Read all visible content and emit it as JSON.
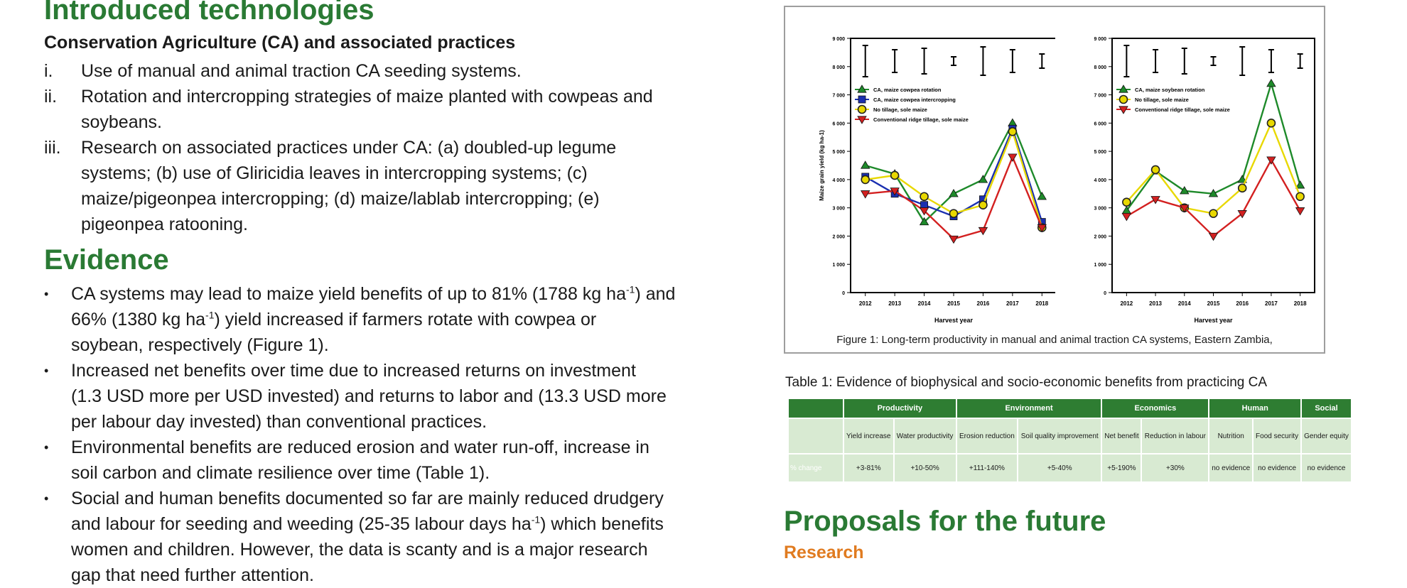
{
  "left": {
    "title": "Introduced technologies",
    "subtitle": "Conservation Agriculture (CA) and associated practices",
    "list": [
      {
        "num": "i.",
        "lines": [
          "Use of manual and animal traction CA seeding systems."
        ]
      },
      {
        "num": "ii.",
        "lines": [
          "Rotation and intercropping strategies of maize planted with cowpeas and",
          "soybeans."
        ]
      },
      {
        "num": "iii.",
        "lines": [
          "Research on associated practices under CA: (a) doubled-up legume",
          "systems; (b) use of Gliricidia leaves in intercropping systems; (c)",
          "maize/pigeonpea intercropping; (d) maize/lablab intercropping; (e)",
          "pigeonpea ratooning."
        ]
      }
    ],
    "evidence_title": "Evidence",
    "bullets": [
      {
        "lines": [
          "CA systems may lead to maize yield benefits of up to 81% (1788 kg ha|-1|) and",
          "66% (1380 kg ha|-1|) yield increased if farmers rotate with cowpea or",
          "soybean, respectively (Figure 1)."
        ]
      },
      {
        "lines": [
          "Increased net benefits over time due to increased returns on investment",
          "(1.3 USD more per USD invested) and returns to labor and (13.3 USD more",
          "per labour day invested) than conventional practices."
        ]
      },
      {
        "lines": [
          "Environmental benefits are reduced erosion and water run-off,  increase in",
          "soil carbon and climate resilience over time (Table 1)."
        ]
      },
      {
        "lines": [
          "Social and human benefits documented so far are mainly reduced drudgery",
          "and labour for seeding and weeding (25-35 labour days  ha|-1|) which benefits",
          "women and children. However, the data is scanty and is a major research",
          "gap that need further attention."
        ]
      }
    ]
  },
  "figure": {
    "caption": "Figure 1: Long-term productivity in manual and animal traction CA systems, Eastern Zambia,"
  },
  "table": {
    "caption": "Table 1: Evidence of  biophysical and socio-economic benefits from practicing CA",
    "groups": [
      "Productivity",
      "Environment",
      "Economics",
      "Human",
      "Social"
    ],
    "subheaders": [
      "Yield increase",
      "Water productivity",
      "Erosion reduction",
      "Soil quality improvement",
      "Net benefit",
      "Reduction in labour",
      "Nutrition",
      "Food security",
      "Gender equity"
    ],
    "row_label": "% change",
    "values": [
      "+3-81%",
      "+10-50%",
      "+111-140%",
      "+5-40%",
      "+5-190%",
      "+30%",
      "no evidence",
      "no evidence",
      "no evidence"
    ]
  },
  "right": {
    "proposals_title": "Proposals for the future",
    "research_label": "Research"
  },
  "chart_data": [
    {
      "type": "line",
      "x": [
        "2012",
        "2013",
        "2014",
        "2015",
        "2016",
        "2017",
        "2018"
      ],
      "ylabel": "Maize grain yield (kg ha-1)",
      "xlabel": "Harvest year",
      "yticks": [
        "0",
        "1 000",
        "2 000",
        "3 000",
        "4 000",
        "5 000",
        "6 000",
        "7 000",
        "8 000",
        "9 000"
      ],
      "ylim": [
        0,
        9000
      ],
      "legend": "top-left",
      "series": [
        {
          "name": "CA, maize cowpea rotation",
          "color": "#1e8a2a",
          "marker": "triangle-up",
          "values": [
            4500,
            4200,
            2500,
            3500,
            4000,
            6000,
            3400
          ]
        },
        {
          "name": "CA, maize cowpea intercropping",
          "color": "#1a2fb0",
          "marker": "square",
          "values": [
            4100,
            3500,
            3100,
            2700,
            3300,
            5800,
            2500
          ]
        },
        {
          "name": "No tillage, sole maize",
          "color": "#e8d800",
          "marker": "circle",
          "values": [
            4000,
            4150,
            3400,
            2800,
            3100,
            5700,
            2300
          ]
        },
        {
          "name": "Conventional ridge tillage, sole maize",
          "color": "#d32020",
          "marker": "triangle-down",
          "values": [
            3500,
            3600,
            2900,
            1900,
            2200,
            4800,
            2300
          ]
        }
      ]
    },
    {
      "type": "line",
      "x": [
        "2012",
        "2013",
        "2014",
        "2015",
        "2016",
        "2017",
        "2018"
      ],
      "xlabel": "Harvest year",
      "yticks": [
        "0",
        "1 000",
        "2 000",
        "3 000",
        "4 000",
        "5 000",
        "6 000",
        "7 000",
        "8 000",
        "9 000"
      ],
      "ylim": [
        0,
        9000
      ],
      "legend": "top-left",
      "series": [
        {
          "name": "CA, maize soybean rotation",
          "color": "#1e8a2a",
          "marker": "triangle-up",
          "values": [
            2900,
            4300,
            3600,
            3500,
            4000,
            7400,
            3800
          ]
        },
        {
          "name": "No tillage, sole maize",
          "color": "#e8d800",
          "marker": "circle",
          "values": [
            3200,
            4350,
            3000,
            2800,
            3700,
            6000,
            3400
          ]
        },
        {
          "name": "Conventional ridge tillage, sole maize",
          "color": "#d32020",
          "marker": "triangle-down",
          "values": [
            2700,
            3300,
            3000,
            2000,
            2800,
            4700,
            2900
          ]
        }
      ]
    }
  ]
}
